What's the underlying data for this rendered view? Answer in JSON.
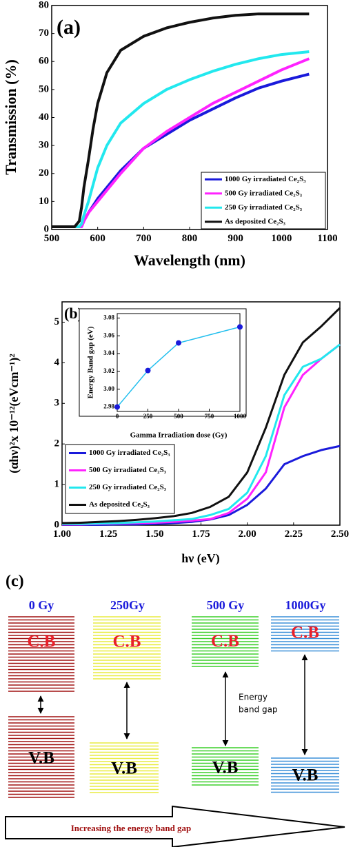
{
  "chart_data": [
    {
      "type": "line",
      "annotation": "(a)",
      "x_label": "Wavelength (nm)",
      "y_label": "Transmission (%)",
      "x": [
        500,
        520,
        540,
        550,
        560,
        565,
        570,
        580,
        590,
        600,
        620,
        650,
        700,
        750,
        800,
        850,
        900,
        950,
        1000,
        1060
      ],
      "series": [
        {
          "name": "1000 Gy irradiated Ce₂S₃",
          "color": "#1a1adb",
          "values": [
            1,
            1,
            1,
            1,
            1,
            1,
            3,
            6,
            8.5,
            11,
            15,
            21,
            29,
            34,
            39,
            43,
            47,
            50.5,
            53,
            55.5
          ]
        },
        {
          "name": "500 Gy irradiated Ce₂S₃",
          "color": "#ff22ff",
          "values": [
            1,
            1,
            1,
            1,
            1,
            1,
            3,
            6,
            8,
            10,
            14,
            20,
            29,
            35,
            40,
            45,
            49,
            53,
            57,
            61
          ]
        },
        {
          "name": "250 Gy irradiated Ce₂S₃",
          "color": "#22e8ee",
          "values": [
            1,
            1,
            1,
            1,
            1,
            2,
            5,
            10,
            16,
            22,
            30,
            38,
            45,
            50,
            53.5,
            56.5,
            59,
            61,
            62.5,
            63.5
          ]
        },
        {
          "name": "As deposited Ce₂S₃",
          "color": "#111111",
          "values": [
            1,
            1,
            1,
            1,
            3,
            8,
            15,
            25,
            36,
            45,
            56,
            64,
            69,
            72,
            74,
            75.5,
            76.5,
            77,
            77,
            77
          ]
        }
      ],
      "xlim": [
        500,
        1100
      ],
      "xticks": [
        500,
        600,
        700,
        800,
        900,
        1000,
        1100
      ],
      "ylim": [
        0,
        80
      ],
      "yticks": [
        0,
        10,
        20,
        30,
        40,
        50,
        60,
        70,
        80
      ],
      "legend": "lower right"
    },
    {
      "type": "line",
      "annotation": "(b)",
      "x_label": "hν (eV)",
      "y_label": "(αhν)²x 10⁻¹²(eVcm⁻¹)²",
      "x": [
        1,
        1.1,
        1.2,
        1.3,
        1.4,
        1.5,
        1.6,
        1.7,
        1.8,
        1.9,
        2,
        2.1,
        2.2,
        2.3,
        2.4,
        2.5
      ],
      "series": [
        {
          "name": "1000 Gy irradiated Ce₂S₃",
          "color": "#1a1adb",
          "values": [
            0.01,
            0.01,
            0.01,
            0.02,
            0.02,
            0.03,
            0.05,
            0.08,
            0.14,
            0.25,
            0.5,
            0.9,
            1.5,
            1.7,
            1.85,
            1.95
          ]
        },
        {
          "name": "500 Gy irradiated Ce₂S₃",
          "color": "#ff22ff",
          "values": [
            0.02,
            0.02,
            0.03,
            0.04,
            0.05,
            0.06,
            0.08,
            0.11,
            0.15,
            0.3,
            0.65,
            1.3,
            2.9,
            3.7,
            4.1,
            4.45
          ]
        },
        {
          "name": "250 Gy irradiated Ce₂S₃",
          "color": "#22e8ee",
          "values": [
            0.03,
            0.03,
            0.04,
            0.05,
            0.07,
            0.09,
            0.12,
            0.15,
            0.25,
            0.4,
            0.8,
            1.7,
            3.2,
            3.9,
            4.1,
            4.45
          ]
        },
        {
          "name": "As deposited Ce₂S₃",
          "color": "#111111",
          "values": [
            0.05,
            0.06,
            0.08,
            0.1,
            0.13,
            0.17,
            0.22,
            0.3,
            0.45,
            0.7,
            1.3,
            2.4,
            3.7,
            4.5,
            4.9,
            5.35
          ]
        }
      ],
      "xlim": [
        1,
        2.5
      ],
      "xticks": [
        {
          "value": 1,
          "label": "1.00"
        },
        1.25,
        {
          "value": 1.5,
          "label": "1.50"
        },
        1.75,
        {
          "value": 2,
          "label": "2.00"
        },
        2.25,
        {
          "value": 2.5,
          "label": "2.50"
        }
      ],
      "ylim": [
        0,
        5.5
      ],
      "yticks": [
        0,
        1,
        2,
        3,
        4,
        5
      ],
      "legend": "lower left"
    },
    {
      "type": "line",
      "x_label": "Gamma Irradiation dose (Gy)",
      "y_label": "Energy Band gap (eV)",
      "color": "#22bfee",
      "marker_color": "#1a1adb",
      "x": [
        0,
        250,
        500,
        1000
      ],
      "values": [
        2.98,
        3.021,
        3.052,
        3.07
      ],
      "xlim": [
        0,
        1000
      ],
      "xticks": [
        0,
        250,
        500,
        750,
        1000
      ],
      "ylim": [
        2.975,
        3.085
      ],
      "yticks": [
        2.98,
        {
          "value": 3,
          "label": "3.00"
        },
        3.02,
        3.04,
        3.06,
        3.08
      ]
    }
  ],
  "diagram": {
    "label": "(c)",
    "columns": [
      {
        "label": "0 Gy",
        "cb": "C.B",
        "vb": "V.B"
      },
      {
        "label": "250Gy",
        "cb": "C.B",
        "vb": "V.B"
      },
      {
        "label": "500 Gy",
        "cb": "C.B",
        "vb": "V.B"
      },
      {
        "label": "1000Gy",
        "cb": "C.B",
        "vb": "V.B"
      }
    ],
    "gap_note": [
      "Energy",
      "band gap"
    ],
    "arrow_text": "Increasing the energy band gap"
  }
}
